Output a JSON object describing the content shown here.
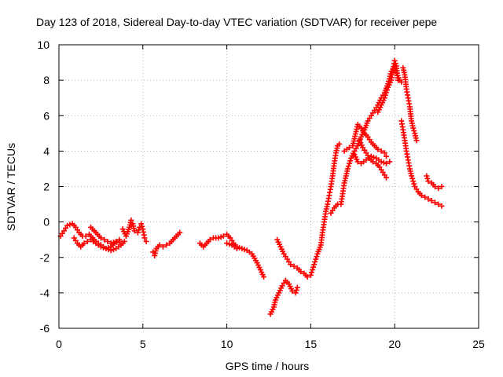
{
  "chart_data": {
    "type": "scatter",
    "title": "Day 123 of 2018, Sidereal Day-to-day VTEC variation (SDTVAR) for receiver pepe",
    "xlabel": "GPS time / hours",
    "ylabel": "SDTVAR / TECUs",
    "xlim": [
      0,
      25
    ],
    "ylim": [
      -6,
      10
    ],
    "xticks": [
      0,
      5,
      10,
      15,
      20,
      25
    ],
    "yticks": [
      -6,
      -4,
      -2,
      0,
      2,
      4,
      6,
      8,
      10
    ],
    "grid": true,
    "marker": "plus",
    "color": "#ff0000",
    "series": [
      {
        "points": [
          [
            0.1,
            -0.8
          ],
          [
            0.3,
            -0.5
          ],
          [
            0.5,
            -0.2
          ],
          [
            0.8,
            -0.1
          ],
          [
            1.0,
            -0.3
          ],
          [
            1.2,
            -0.6
          ],
          [
            1.4,
            -0.8
          ],
          [
            1.6,
            -0.8
          ],
          [
            1.8,
            -0.7
          ],
          [
            2.0,
            -0.9
          ],
          [
            2.2,
            -1.1
          ],
          [
            2.5,
            -1.3
          ],
          [
            2.8,
            -1.5
          ],
          [
            3.1,
            -1.4
          ],
          [
            3.3,
            -1.2
          ],
          [
            3.6,
            -1.1
          ]
        ]
      },
      {
        "points": [
          [
            0.9,
            -0.9
          ],
          [
            1.1,
            -1.2
          ],
          [
            1.3,
            -1.4
          ],
          [
            1.5,
            -1.2
          ],
          [
            1.7,
            -1.1
          ],
          [
            1.9,
            -1.0
          ],
          [
            2.2,
            -1.2
          ],
          [
            2.5,
            -1.4
          ],
          [
            2.8,
            -1.5
          ],
          [
            3.1,
            -1.6
          ],
          [
            3.4,
            -1.5
          ],
          [
            3.7,
            -1.3
          ],
          [
            3.9,
            -1.1
          ]
        ]
      },
      {
        "points": [
          [
            1.9,
            -0.3
          ],
          [
            2.1,
            -0.5
          ],
          [
            2.3,
            -0.7
          ],
          [
            2.5,
            -0.9
          ],
          [
            2.7,
            -1.0
          ],
          [
            2.9,
            -1.1
          ],
          [
            3.1,
            -1.2
          ],
          [
            3.4,
            -1.1
          ],
          [
            3.6,
            -1.0
          ]
        ]
      },
      {
        "points": [
          [
            3.8,
            -0.4
          ],
          [
            4.0,
            -0.8
          ],
          [
            4.2,
            -0.3
          ],
          [
            4.3,
            0.1
          ],
          [
            4.4,
            -0.1
          ],
          [
            4.5,
            -0.5
          ],
          [
            4.7,
            -0.6
          ],
          [
            4.8,
            -0.3
          ],
          [
            4.9,
            -0.1
          ],
          [
            5.0,
            -0.4
          ],
          [
            5.1,
            -0.9
          ],
          [
            5.2,
            -1.1
          ]
        ]
      },
      {
        "points": [
          [
            5.6,
            -1.7
          ],
          [
            5.7,
            -1.9
          ],
          [
            5.8,
            -1.5
          ],
          [
            6.0,
            -1.3
          ],
          [
            6.2,
            -1.4
          ],
          [
            6.4,
            -1.3
          ],
          [
            6.6,
            -1.2
          ],
          [
            6.8,
            -1.0
          ],
          [
            7.0,
            -0.8
          ],
          [
            7.2,
            -0.6
          ]
        ]
      },
      {
        "points": [
          [
            8.4,
            -1.2
          ],
          [
            8.6,
            -1.4
          ],
          [
            8.8,
            -1.2
          ],
          [
            9.0,
            -1.0
          ],
          [
            9.2,
            -0.9
          ],
          [
            9.5,
            -0.9
          ],
          [
            9.8,
            -0.8
          ],
          [
            10.0,
            -0.7
          ],
          [
            10.2,
            -0.9
          ],
          [
            10.4,
            -1.2
          ],
          [
            10.6,
            -1.4
          ],
          [
            10.9,
            -1.5
          ],
          [
            11.2,
            -1.6
          ],
          [
            11.5,
            -1.8
          ],
          [
            11.8,
            -2.3
          ],
          [
            12.0,
            -2.7
          ],
          [
            12.2,
            -3.1
          ]
        ]
      },
      {
        "points": [
          [
            10.0,
            -1.2
          ],
          [
            10.3,
            -1.3
          ],
          [
            10.6,
            -1.5
          ]
        ]
      },
      {
        "points": [
          [
            12.6,
            -5.2
          ],
          [
            12.8,
            -4.8
          ],
          [
            12.9,
            -4.4
          ],
          [
            13.1,
            -4.0
          ],
          [
            13.3,
            -3.6
          ],
          [
            13.5,
            -3.3
          ],
          [
            13.7,
            -3.5
          ],
          [
            13.9,
            -3.9
          ],
          [
            14.1,
            -4.0
          ],
          [
            14.2,
            -3.7
          ]
        ]
      },
      {
        "points": [
          [
            13.0,
            -1.0
          ],
          [
            13.2,
            -1.4
          ],
          [
            13.4,
            -1.8
          ],
          [
            13.6,
            -2.1
          ],
          [
            13.8,
            -2.4
          ],
          [
            14.0,
            -2.5
          ],
          [
            14.2,
            -2.6
          ],
          [
            14.4,
            -2.8
          ],
          [
            14.6,
            -2.9
          ],
          [
            14.8,
            -3.1
          ],
          [
            15.0,
            -3.0
          ],
          [
            15.2,
            -2.4
          ],
          [
            15.4,
            -1.8
          ],
          [
            15.6,
            -1.3
          ],
          [
            15.7,
            -0.6
          ],
          [
            15.8,
            0.0
          ],
          [
            15.9,
            0.6
          ],
          [
            16.0,
            1.0
          ],
          [
            16.1,
            1.5
          ],
          [
            16.2,
            2.0
          ],
          [
            16.3,
            2.6
          ],
          [
            16.4,
            3.3
          ],
          [
            16.5,
            3.9
          ],
          [
            16.6,
            4.3
          ],
          [
            16.7,
            4.4
          ]
        ]
      },
      {
        "points": [
          [
            16.2,
            0.5
          ],
          [
            16.4,
            0.8
          ],
          [
            16.6,
            1.0
          ],
          [
            16.8,
            1.0
          ],
          [
            16.9,
            1.6
          ],
          [
            17.0,
            2.2
          ],
          [
            17.2,
            3.0
          ],
          [
            17.4,
            3.6
          ],
          [
            17.6,
            4.0
          ],
          [
            17.8,
            4.3
          ],
          [
            18.0,
            4.8
          ],
          [
            18.2,
            5.2
          ],
          [
            18.4,
            5.7
          ],
          [
            18.6,
            6.0
          ],
          [
            18.8,
            6.3
          ],
          [
            19.0,
            6.6
          ],
          [
            19.2,
            7.0
          ],
          [
            19.4,
            7.3
          ],
          [
            19.6,
            7.8
          ],
          [
            19.8,
            8.5
          ],
          [
            20.0,
            8.8
          ],
          [
            20.1,
            8.4
          ],
          [
            20.3,
            8.0
          ],
          [
            20.4,
            7.9
          ]
        ]
      },
      {
        "points": [
          [
            17.0,
            4.0
          ],
          [
            17.3,
            4.2
          ],
          [
            17.5,
            4.3
          ],
          [
            17.8,
            5.5
          ],
          [
            18.0,
            5.3
          ],
          [
            18.2,
            5.0
          ],
          [
            18.4,
            4.8
          ],
          [
            18.6,
            4.5
          ],
          [
            18.8,
            4.3
          ],
          [
            19.0,
            4.1
          ],
          [
            19.2,
            4.0
          ],
          [
            19.4,
            3.9
          ],
          [
            19.5,
            3.7
          ]
        ]
      },
      {
        "points": [
          [
            17.9,
            4.6
          ],
          [
            18.1,
            4.2
          ],
          [
            18.3,
            3.9
          ],
          [
            18.5,
            3.6
          ],
          [
            18.7,
            3.4
          ],
          [
            18.9,
            3.3
          ],
          [
            19.1,
            3.1
          ],
          [
            19.3,
            2.8
          ],
          [
            19.5,
            2.5
          ]
        ]
      },
      {
        "points": [
          [
            17.6,
            3.8
          ],
          [
            17.8,
            3.4
          ],
          [
            18.0,
            3.3
          ],
          [
            18.3,
            3.5
          ],
          [
            18.6,
            3.7
          ],
          [
            18.9,
            3.6
          ],
          [
            19.2,
            3.4
          ],
          [
            19.5,
            3.3
          ],
          [
            19.7,
            3.4
          ]
        ]
      },
      {
        "points": [
          [
            19.0,
            6.2
          ],
          [
            19.2,
            6.6
          ],
          [
            19.4,
            7.0
          ],
          [
            19.6,
            7.6
          ],
          [
            19.8,
            8.0
          ],
          [
            19.9,
            8.6
          ],
          [
            20.0,
            9.1
          ],
          [
            20.1,
            8.8
          ],
          [
            20.2,
            8.0
          ]
        ]
      },
      {
        "points": [
          [
            20.5,
            8.7
          ],
          [
            20.6,
            8.3
          ],
          [
            20.7,
            7.5
          ],
          [
            20.8,
            7.0
          ],
          [
            20.9,
            6.5
          ],
          [
            21.0,
            5.7
          ],
          [
            21.1,
            5.3
          ],
          [
            21.2,
            5.0
          ],
          [
            21.3,
            4.6
          ]
        ]
      },
      {
        "points": [
          [
            20.4,
            5.7
          ],
          [
            20.5,
            5.2
          ],
          [
            20.6,
            4.6
          ],
          [
            20.7,
            4.0
          ],
          [
            20.8,
            3.5
          ],
          [
            20.9,
            3.0
          ],
          [
            21.0,
            2.6
          ],
          [
            21.1,
            2.3
          ],
          [
            21.2,
            2.0
          ],
          [
            21.4,
            1.7
          ],
          [
            21.6,
            1.5
          ],
          [
            21.8,
            1.4
          ],
          [
            22.0,
            1.3
          ],
          [
            22.2,
            1.2
          ],
          [
            22.4,
            1.1
          ],
          [
            22.6,
            1.0
          ],
          [
            22.8,
            0.9
          ]
        ]
      },
      {
        "points": [
          [
            21.9,
            2.6
          ],
          [
            22.0,
            2.3
          ],
          [
            22.2,
            2.2
          ],
          [
            22.4,
            2.0
          ],
          [
            22.6,
            1.9
          ],
          [
            22.8,
            2.0
          ]
        ]
      }
    ]
  }
}
